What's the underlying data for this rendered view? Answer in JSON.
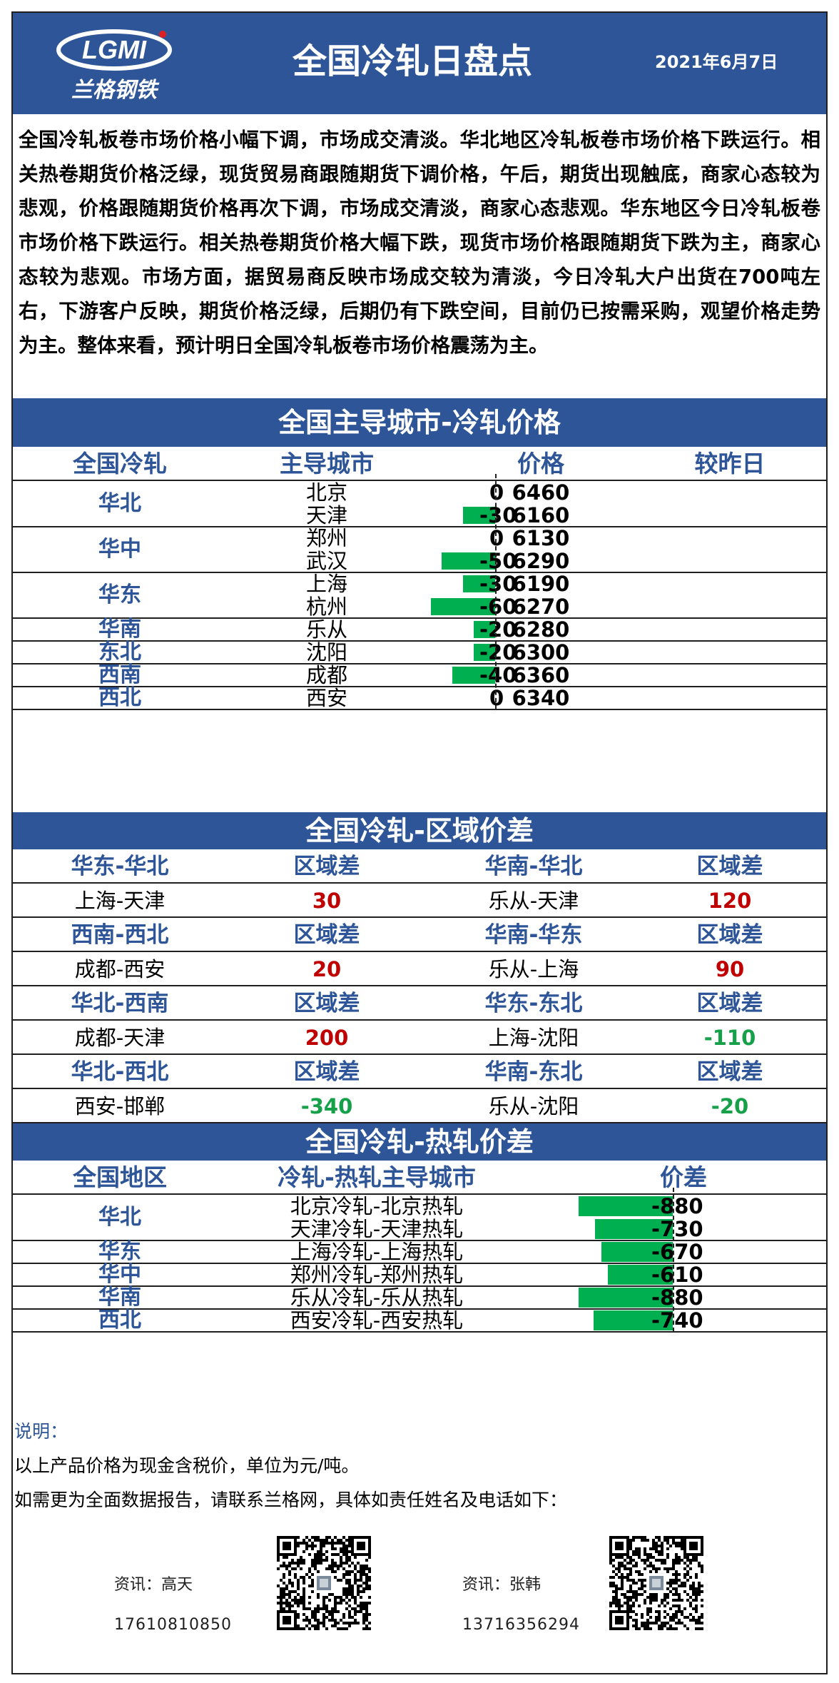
{
  "header": {
    "logo_text": "LGMI",
    "logo_cn": "兰格钢铁",
    "title": "全国冷轧日盘点",
    "date": "2021年6月7日"
  },
  "summary": "全国冷轧板卷市场价格小幅下调，市场成交清淡。华北地区冷轧板卷市场价格下跌运行。相关热卷期货价格泛绿，现货贸易商跟随期货下调价格，午后，期货出现触底，商家心态较为悲观，价格跟随期货价格再次下调，市场成交清淡，商家心态悲观。华东地区今日冷轧板卷市场价格下跌运行。相关热卷期货价格大幅下跌，现货市场价格跟随期货下跌为主，商家心态较为悲观。市场方面，据贸易商反映市场成交较为清淡，今日冷轧大户出货在700吨左右，下游客户反映，期货价格泛绿，后期仍有下跌空间，目前仍已按需采购，观望价格走势为主。整体来看，预计明日全国冷轧板卷市场价格震荡为主。",
  "city_prices": {
    "title": "全国主导城市-冷轧价格",
    "headers": [
      "全国冷轧",
      "主导城市",
      "价格",
      "较昨日"
    ],
    "regions": [
      {
        "region": "华北",
        "rows": [
          {
            "city": "北京",
            "price": "6460",
            "change": "0",
            "delta": 0
          },
          {
            "city": "天津",
            "price": "6160",
            "change": "-30",
            "delta": -30
          }
        ]
      },
      {
        "region": "华中",
        "rows": [
          {
            "city": "郑州",
            "price": "6130",
            "change": "0",
            "delta": 0
          },
          {
            "city": "武汉",
            "price": "6290",
            "change": "-50",
            "delta": -50
          }
        ]
      },
      {
        "region": "华东",
        "rows": [
          {
            "city": "上海",
            "price": "6190",
            "change": "-30",
            "delta": -30
          },
          {
            "city": "杭州",
            "price": "6270",
            "change": "-60",
            "delta": -60
          }
        ]
      },
      {
        "region": "华南",
        "rows": [
          {
            "city": "乐从",
            "price": "6280",
            "change": "-20",
            "delta": -20
          }
        ]
      },
      {
        "region": "东北",
        "rows": [
          {
            "city": "沈阳",
            "price": "6300",
            "change": "-20",
            "delta": -20
          }
        ]
      },
      {
        "region": "西南",
        "rows": [
          {
            "city": "成都",
            "price": "6360",
            "change": "-40",
            "delta": -40
          }
        ]
      },
      {
        "region": "西北",
        "rows": [
          {
            "city": "西安",
            "price": "6340",
            "change": "0",
            "delta": 0
          }
        ]
      }
    ]
  },
  "region_spread": {
    "title": "全国冷轧-区域价差",
    "col_label": "区域差",
    "blocks": [
      [
        {
          "pair": "华东-华北",
          "cities": "上海-天津",
          "value": "30",
          "sign": "pos"
        },
        {
          "pair": "华南-华北",
          "cities": "乐从-天津",
          "value": "120",
          "sign": "pos"
        }
      ],
      [
        {
          "pair": "西南-西北",
          "cities": "成都-西安",
          "value": "20",
          "sign": "pos"
        },
        {
          "pair": "华南-华东",
          "cities": "乐从-上海",
          "value": "90",
          "sign": "pos"
        }
      ],
      [
        {
          "pair": "华北-西南",
          "cities": "成都-天津",
          "value": "200",
          "sign": "pos"
        },
        {
          "pair": "华东-东北",
          "cities": "上海-沈阳",
          "value": "-110",
          "sign": "neg"
        }
      ],
      [
        {
          "pair": "华北-西北",
          "cities": "西安-邯郸",
          "value": "-340",
          "sign": "neg"
        },
        {
          "pair": "华南-东北",
          "cities": "乐从-沈阳",
          "value": "-20",
          "sign": "neg"
        }
      ]
    ]
  },
  "cold_hot_spread": {
    "title": "全国冷轧-热轧价差",
    "headers": [
      "全国地区",
      "冷轧-热轧主导城市",
      "价差"
    ],
    "regions": [
      {
        "region": "华北",
        "rows": [
          {
            "pair": "北京冷轧-北京热轧",
            "spread": "-880",
            "delta": -880
          },
          {
            "pair": "天津冷轧-天津热轧",
            "spread": "-730",
            "delta": -730
          }
        ]
      },
      {
        "region": "华东",
        "rows": [
          {
            "pair": "上海冷轧-上海热轧",
            "spread": "-670",
            "delta": -670
          }
        ]
      },
      {
        "region": "华中",
        "rows": [
          {
            "pair": "郑州冷轧-郑州热轧",
            "spread": "-610",
            "delta": -610
          }
        ]
      },
      {
        "region": "华南",
        "rows": [
          {
            "pair": "乐从冷轧-乐从热轧",
            "spread": "-880",
            "delta": -880
          }
        ]
      },
      {
        "region": "西北",
        "rows": [
          {
            "pair": "西安冷轧-西安热轧",
            "spread": "-740",
            "delta": -740
          }
        ]
      }
    ]
  },
  "notes": {
    "label": "说明：",
    "line1": "以上产品价格为现金含税价，单位为元/吨。",
    "line2": "如需更为全面数据报告，请联系兰格网，具体如责任姓名及电话如下："
  },
  "contacts": [
    {
      "name": "资讯：高天",
      "phone": "17610810850"
    },
    {
      "name": "资讯：张韩",
      "phone": "13716356294"
    }
  ],
  "colors": {
    "brand": "#2e5597",
    "bar": "#00b050",
    "positive": "#c00000",
    "negative": "#16a04a"
  }
}
